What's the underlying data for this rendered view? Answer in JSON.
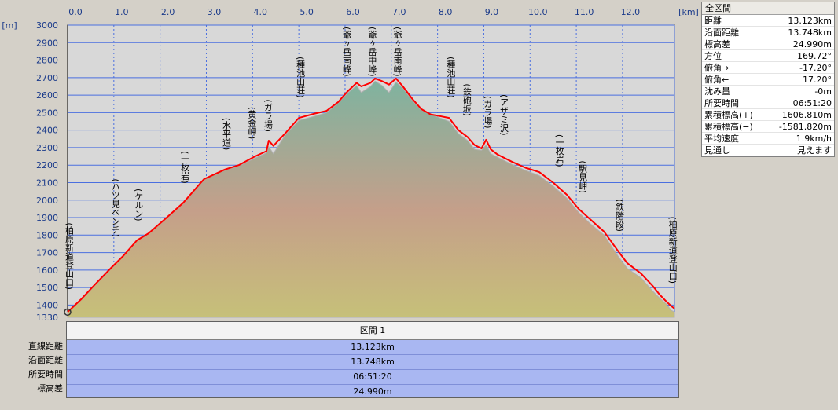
{
  "chart_data": {
    "type": "area",
    "title": "",
    "xlabel": "",
    "ylabel": "",
    "x_unit": "[km]",
    "y_unit": "[m]",
    "xlim": [
      0,
      13.123
    ],
    "ylim": [
      1330,
      3000
    ],
    "x_ticks": [
      "0.0",
      "1.0",
      "2.0",
      "3.0",
      "4.0",
      "5.0",
      "6.0",
      "7.0",
      "8.0",
      "9.0",
      "10.0",
      "11.0",
      "12.0"
    ],
    "y_ticks": [
      "3000",
      "2900",
      "2800",
      "2700",
      "2600",
      "2500",
      "2400",
      "2300",
      "2200",
      "2100",
      "2000",
      "1900",
      "1800",
      "1700",
      "1600",
      "1500",
      "1400",
      "1330"
    ],
    "grid": true,
    "colors": {
      "profile": "#ff0000",
      "terrain_top": "#7fb39f",
      "terrain_bottom": "#c9c07a",
      "grid": "#4a6fe0",
      "plot_bg": "#d8d8d8"
    },
    "series": [
      {
        "x": [
          0,
          0.3,
          0.6,
          0.95,
          1.2,
          1.5,
          1.75,
          2.1,
          2.5,
          2.95,
          3.4,
          3.7,
          4.05,
          4.3,
          4.35,
          4.45,
          4.7,
          5.0,
          5.35,
          5.6,
          5.85,
          6.05,
          6.25,
          6.35,
          6.55,
          6.65,
          6.8,
          6.95,
          7.1,
          7.25,
          7.45,
          7.65,
          7.85,
          8.05,
          8.25,
          8.45,
          8.65,
          8.8,
          8.95,
          9.05,
          9.15,
          9.3,
          9.6,
          9.9,
          10.2,
          10.5,
          10.8,
          11.05,
          11.3,
          11.6,
          11.9,
          12.1,
          12.4,
          12.65,
          12.8,
          12.95,
          13.05,
          13.123
        ],
        "y": [
          1360,
          1435,
          1520,
          1615,
          1680,
          1770,
          1810,
          1890,
          1985,
          2120,
          2175,
          2200,
          2250,
          2280,
          2340,
          2310,
          2380,
          2470,
          2495,
          2510,
          2560,
          2620,
          2670,
          2650,
          2670,
          2695,
          2680,
          2660,
          2695,
          2650,
          2580,
          2520,
          2490,
          2480,
          2470,
          2400,
          2360,
          2315,
          2295,
          2345,
          2290,
          2260,
          2220,
          2185,
          2160,
          2100,
          2030,
          1950,
          1890,
          1820,
          1710,
          1640,
          1580,
          1510,
          1460,
          1420,
          1395,
          1380
        ]
      }
    ],
    "terrain_shadow": [
      0,
      -5,
      -5,
      -5,
      0,
      0,
      0,
      0,
      0,
      0,
      0,
      -5,
      -10,
      -10,
      -35,
      -45,
      -10,
      -15,
      -15,
      -10,
      -5,
      -10,
      -15,
      -35,
      -20,
      -15,
      -25,
      -45,
      -20,
      -10,
      -10,
      -5,
      0,
      -10,
      -20,
      -20,
      -20,
      -25,
      -10,
      -30,
      -25,
      -15,
      -15,
      -15,
      -20,
      -20,
      -20,
      -20,
      -25,
      -20,
      -30,
      -30,
      -25,
      -30,
      -20,
      -15,
      -25,
      -20
    ],
    "annotations": [
      {
        "label": "柏原新道登山口",
        "x": 0.0,
        "y": 1360
      },
      {
        "label": "ハツ見ベンチ",
        "x": 1.0,
        "y": 1665
      },
      {
        "label": "ケルン",
        "x": 1.5,
        "y": 1770
      },
      {
        "label": "一枚岩",
        "x": 2.5,
        "y": 1985
      },
      {
        "label": "水平道",
        "x": 3.4,
        "y": 2175
      },
      {
        "label": "黄金岬",
        "x": 3.95,
        "y": 2238
      },
      {
        "label": "ガラ場",
        "x": 4.3,
        "y": 2280
      },
      {
        "label": "種池山荘",
        "x": 5.0,
        "y": 2470
      },
      {
        "label": "爺ヶ岳南峰",
        "x": 6.0,
        "y": 2600
      },
      {
        "label": "爺ヶ岳中峰",
        "x": 6.55,
        "y": 2670
      },
      {
        "label": "爺ヶ岳南峰",
        "x": 7.1,
        "y": 2695
      },
      {
        "label": "種池山荘",
        "x": 8.25,
        "y": 2470
      },
      {
        "label": "鉄砲坂",
        "x": 8.6,
        "y": 2370
      },
      {
        "label": "ガラ場",
        "x": 9.05,
        "y": 2300
      },
      {
        "label": "アザミ沢",
        "x": 9.4,
        "y": 2255
      },
      {
        "label": "一枚岩",
        "x": 10.6,
        "y": 2080
      },
      {
        "label": "駅見岬",
        "x": 11.1,
        "y": 1930
      },
      {
        "label": "鉄階段",
        "x": 11.9,
        "y": 1710
      },
      {
        "label": "柏原新道登山口",
        "x": 13.05,
        "y": 1395
      }
    ]
  },
  "summary": {
    "title": "全区間",
    "rows": [
      {
        "label": "距離",
        "value": "13.123km"
      },
      {
        "label": "沿面距離",
        "value": "13.748km"
      },
      {
        "label": "標高差",
        "value": "24.990m"
      },
      {
        "label": "方位",
        "value": "169.72°"
      },
      {
        "label": "俯角→",
        "value": "-17.20°"
      },
      {
        "label": "俯角←",
        "value": "17.20°"
      },
      {
        "label": "沈み量",
        "value": "-0m"
      },
      {
        "label": "所要時間",
        "value": "06:51:20"
      },
      {
        "label": "累積標高(+)",
        "value": "1606.810m"
      },
      {
        "label": "累積標高(−)",
        "value": "-1581.820m"
      },
      {
        "label": "平均速度",
        "value": "1.9km/h"
      },
      {
        "label": "見通し",
        "value": "見えます"
      }
    ]
  },
  "segment": {
    "title": "区間 1",
    "labels": [
      "直線距離",
      "沿面距離",
      "所要時間",
      "標高差"
    ],
    "values": [
      "13.123km",
      "13.748km",
      "06:51:20",
      "24.990m"
    ]
  }
}
